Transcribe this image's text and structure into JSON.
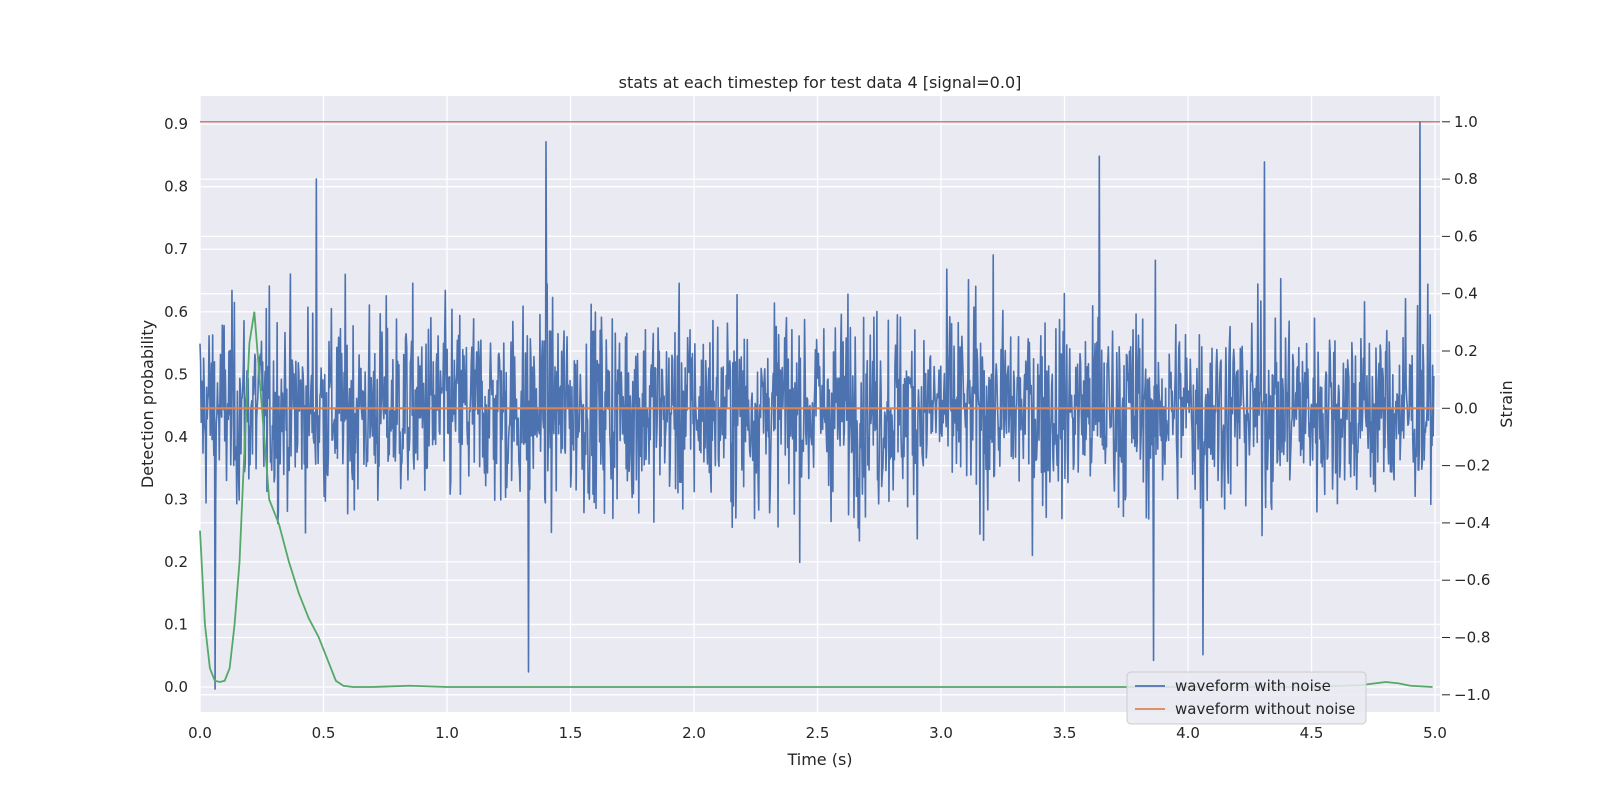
{
  "chart_data": {
    "type": "line",
    "title": "stats at each timestep for test data 4 [signal=0.0]",
    "xlabel": "Time (s)",
    "ylabel_left": "Detection probability",
    "ylabel_right": "Strain",
    "xlim": [
      0.0,
      5.02
    ],
    "ylim_left": [
      -0.04,
      0.945
    ],
    "ylim_right": [
      -1.06,
      1.09
    ],
    "x_ticks": [
      0.0,
      0.5,
      1.0,
      1.5,
      2.0,
      2.5,
      3.0,
      3.5,
      4.0,
      4.5,
      5.0
    ],
    "x_tick_labels": [
      "0.0",
      "0.5",
      "1.0",
      "1.5",
      "2.0",
      "2.5",
      "3.0",
      "3.5",
      "4.0",
      "4.5",
      "5.0"
    ],
    "y_left_ticks": [
      0.0,
      0.1,
      0.2,
      0.3,
      0.4,
      0.5,
      0.6,
      0.7,
      0.8,
      0.9
    ],
    "y_left_tick_labels": [
      "0.0",
      "0.1",
      "0.2",
      "0.3",
      "0.4",
      "0.5",
      "0.6",
      "0.7",
      "0.8",
      "0.9"
    ],
    "y_right_ticks": [
      -1.0,
      -0.8,
      -0.6,
      -0.4,
      -0.2,
      0.0,
      0.2,
      0.4,
      0.6,
      0.8,
      1.0
    ],
    "y_right_tick_labels": [
      "−1.0",
      "−0.8",
      "−0.6",
      "−0.4",
      "−0.2",
      "0.0",
      "0.2",
      "0.4",
      "0.6",
      "0.8",
      "1.0"
    ],
    "grid": true,
    "legend_placement": "lower right",
    "series": [
      {
        "name": "waveform with noise",
        "axis": "right",
        "color": "#4c72b0",
        "description_samples": 2048,
        "x_range": [
          0.0,
          4.995
        ],
        "y_peaks_max": [
          [
            0.47,
            0.8
          ],
          [
            1.4,
            0.93
          ],
          [
            4.94,
            1.0
          ],
          [
            3.64,
            0.88
          ],
          [
            4.31,
            0.86
          ]
        ],
        "y_peaks_min": [
          [
            0.06,
            -0.98
          ],
          [
            1.33,
            -0.92
          ],
          [
            4.06,
            -0.86
          ],
          [
            3.86,
            -0.88
          ]
        ]
      },
      {
        "name": "waveform without noise",
        "axis": "right",
        "color": "#dd8452",
        "x": [
          0.0,
          4.995
        ],
        "y": [
          0.0,
          0.0
        ]
      },
      {
        "name": "",
        "axis": "left",
        "color": "#55a868",
        "x": [
          0.0,
          0.02,
          0.04,
          0.06,
          0.08,
          0.1,
          0.12,
          0.14,
          0.16,
          0.18,
          0.2,
          0.22,
          0.25,
          0.28,
          0.32,
          0.36,
          0.4,
          0.44,
          0.48,
          0.52,
          0.55,
          0.58,
          0.62,
          0.7,
          0.85,
          1.0,
          2.0,
          3.0,
          3.7,
          4.0,
          4.3,
          4.5,
          4.7,
          4.76,
          4.8,
          4.85,
          4.9,
          4.99
        ],
        "y": [
          0.25,
          0.1,
          0.03,
          0.01,
          0.008,
          0.01,
          0.03,
          0.1,
          0.2,
          0.38,
          0.55,
          0.6,
          0.45,
          0.3,
          0.26,
          0.2,
          0.15,
          0.11,
          0.08,
          0.04,
          0.01,
          0.002,
          0.0,
          0.0,
          0.002,
          0.0,
          0.0,
          0.0,
          0.0,
          0.0,
          0.0,
          0.0,
          0.003,
          0.006,
          0.008,
          0.006,
          0.002,
          0.0
        ]
      },
      {
        "name": "",
        "axis": "right",
        "color": "#c44e52",
        "x": [
          0.0,
          5.02
        ],
        "y": [
          1.0,
          1.0
        ]
      }
    ]
  }
}
